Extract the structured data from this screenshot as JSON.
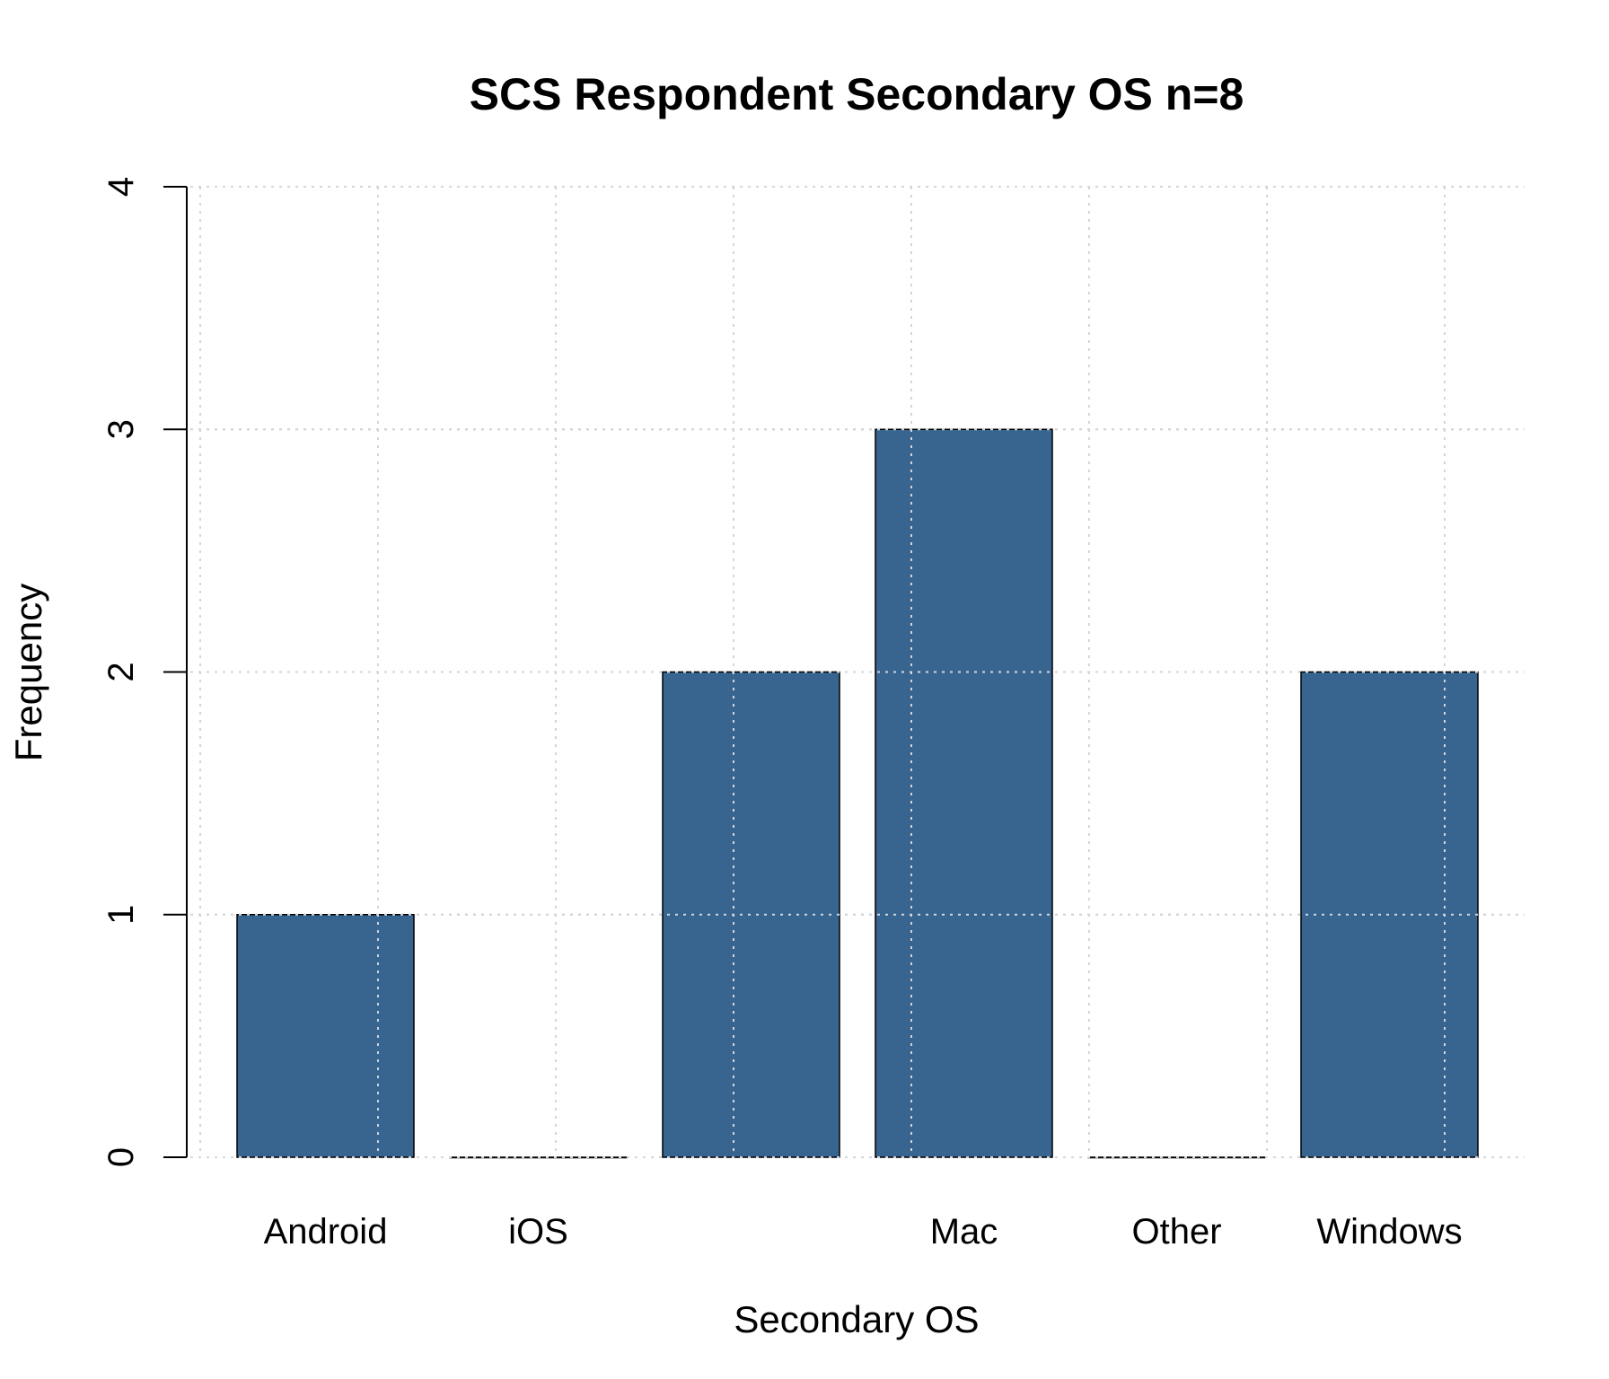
{
  "chart_data": {
    "type": "bar",
    "title": "SCS Respondent Secondary OS n=8",
    "xlabel": "Secondary OS",
    "ylabel": "Frequency",
    "categories": [
      "Android",
      "iOS",
      "",
      "Mac",
      "Other",
      "Windows"
    ],
    "values": [
      1,
      0,
      2,
      3,
      0,
      2
    ],
    "ylim": [
      0,
      4
    ],
    "yticks": [
      "0",
      "1",
      "2",
      "3",
      "4"
    ],
    "grid": true,
    "bar_color": "#376590"
  }
}
